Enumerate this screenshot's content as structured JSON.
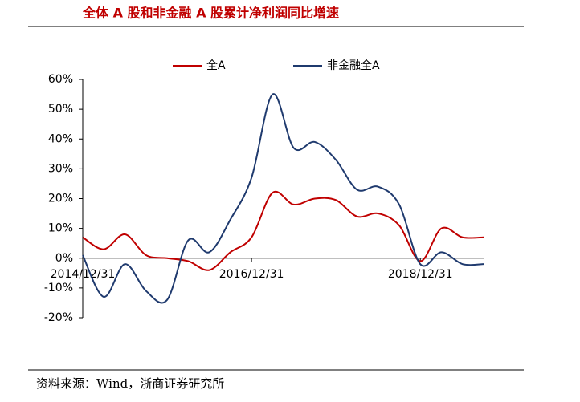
{
  "chart_data": {
    "type": "line",
    "title": "全体 A 股和非金融 A 股累计净利润同比增速",
    "source": "资料来源：Wind，浙商证券研究所",
    "categories": [
      "2014/12/31",
      null,
      null,
      null,
      null,
      null,
      null,
      null,
      "2016/12/31",
      null,
      null,
      null,
      null,
      null,
      null,
      null,
      "2018/12/31",
      null,
      null,
      null
    ],
    "series": [
      {
        "name": "全A",
        "color": "#c00000",
        "values": [
          7,
          3,
          8,
          1,
          0,
          -1,
          -4,
          2,
          7,
          22,
          18,
          20,
          19.5,
          14,
          15,
          11,
          -1,
          10,
          7,
          7
        ]
      },
      {
        "name": "非金融全A",
        "color": "#1f3a6e",
        "values": [
          1,
          -13,
          -2,
          -11,
          -14,
          6,
          2,
          13,
          27,
          55,
          37,
          39,
          33,
          23,
          24,
          18,
          -2,
          2,
          -2,
          -2
        ]
      }
    ],
    "ylim": [
      -20,
      60
    ],
    "yticks": [
      {
        "value": -20,
        "label": "-20%"
      },
      {
        "value": -10,
        "label": "-10%"
      },
      {
        "value": 0,
        "label": "0%"
      },
      {
        "value": 10,
        "label": "10%"
      },
      {
        "value": 20,
        "label": "20%"
      },
      {
        "value": 30,
        "label": "30%"
      },
      {
        "value": 40,
        "label": "40%"
      },
      {
        "value": 50,
        "label": "50%"
      },
      {
        "value": 60,
        "label": "60%"
      }
    ],
    "legend": "top"
  }
}
